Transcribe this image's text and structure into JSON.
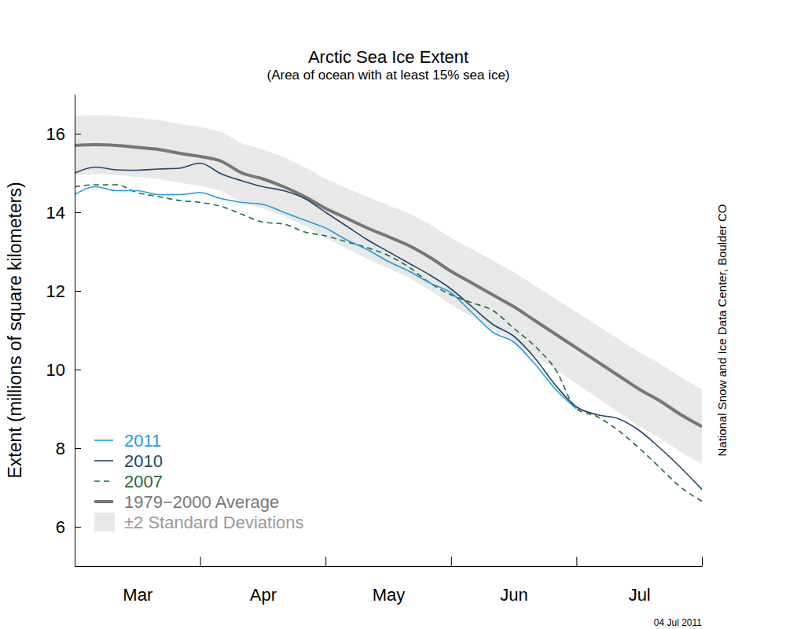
{
  "chart_data": {
    "type": "line",
    "title": "Arctic Sea Ice Extent",
    "subtitle": "(Area of ocean with at least 15% sea ice)",
    "y_label": "Extent (millions of square kilometers)",
    "annotations": [
      "National Snow and Ice Data Center, Boulder CO",
      "04 Jul 2011"
    ],
    "categories": [
      null,
      null,
      null,
      "Mar",
      null,
      null,
      null,
      null,
      null,
      "Apr",
      null,
      null,
      null,
      null,
      null,
      "May",
      null,
      null,
      null,
      null,
      null,
      "Jun",
      null,
      null,
      null,
      null,
      null,
      "Jul",
      null,
      null,
      null
    ],
    "ylim": [
      5,
      17
    ],
    "yticks": [
      6,
      8,
      10,
      12,
      14,
      16
    ],
    "legend": "lower left",
    "grid": false,
    "series": [
      {
        "name": "2011",
        "type": "line",
        "color": "#1b9de2",
        "line_style": "solid",
        "values": [
          14.45,
          14.65,
          14.55,
          14.55,
          14.45,
          14.45,
          14.5,
          14.35,
          14.25,
          14.2,
          14.0,
          13.8,
          13.6,
          13.3,
          13.05,
          12.75,
          12.5,
          12.2,
          11.95,
          11.45,
          10.95,
          10.7,
          10.15,
          9.5,
          9.0,
          null,
          null,
          null,
          null,
          null,
          null
        ]
      },
      {
        "name": "2010",
        "type": "line",
        "color": "#23466e",
        "line_style": "solid",
        "values": [
          15.0,
          15.15,
          15.08,
          15.07,
          15.1,
          15.12,
          15.25,
          14.98,
          14.8,
          14.65,
          14.55,
          14.35,
          14.0,
          13.65,
          13.3,
          13.0,
          12.7,
          12.4,
          12.05,
          11.6,
          11.15,
          10.85,
          10.3,
          9.6,
          9.05,
          8.85,
          8.75,
          8.45,
          8.0,
          7.5,
          6.95
        ]
      },
      {
        "name": "2007",
        "type": "line",
        "color": "#1f6b35",
        "line_style": "dashed",
        "values": [
          14.65,
          14.7,
          14.7,
          14.5,
          14.4,
          14.3,
          14.25,
          14.15,
          13.95,
          13.75,
          13.7,
          13.5,
          13.4,
          13.25,
          13.1,
          12.9,
          12.6,
          12.2,
          11.9,
          11.7,
          11.5,
          11.05,
          10.6,
          10.0,
          9.0,
          8.8,
          8.45,
          8.0,
          7.5,
          7.0,
          6.65
        ]
      },
      {
        "name": "1979−2000 Average",
        "type": "line",
        "color": "#777777",
        "line_style": "bold",
        "values": [
          15.7,
          15.72,
          15.7,
          15.65,
          15.6,
          15.5,
          15.42,
          15.3,
          15.0,
          14.85,
          14.65,
          14.4,
          14.1,
          13.85,
          13.6,
          13.38,
          13.15,
          12.85,
          12.5,
          12.2,
          11.9,
          11.6,
          11.25,
          10.9,
          10.55,
          10.2,
          9.85,
          9.5,
          9.2,
          8.85,
          8.55
        ]
      },
      {
        "name": "±2 Standard Deviations",
        "type": "area",
        "color": "#e8e8e8",
        "lower": [
          14.95,
          14.97,
          14.95,
          14.9,
          14.85,
          14.75,
          14.67,
          14.55,
          14.25,
          14.1,
          13.9,
          13.65,
          13.35,
          13.08,
          12.81,
          12.58,
          12.33,
          12.01,
          11.65,
          11.34,
          11.03,
          10.72,
          10.36,
          10.0,
          9.64,
          9.28,
          8.92,
          8.56,
          8.25,
          7.9,
          7.6
        ],
        "upper": [
          16.45,
          16.47,
          16.45,
          16.4,
          16.35,
          16.25,
          16.17,
          16.05,
          15.75,
          15.6,
          15.4,
          15.15,
          14.85,
          14.62,
          14.39,
          14.18,
          13.97,
          13.69,
          13.35,
          13.06,
          12.77,
          12.48,
          12.14,
          11.8,
          11.46,
          11.12,
          10.78,
          10.44,
          10.15,
          9.8,
          9.5
        ]
      }
    ]
  }
}
